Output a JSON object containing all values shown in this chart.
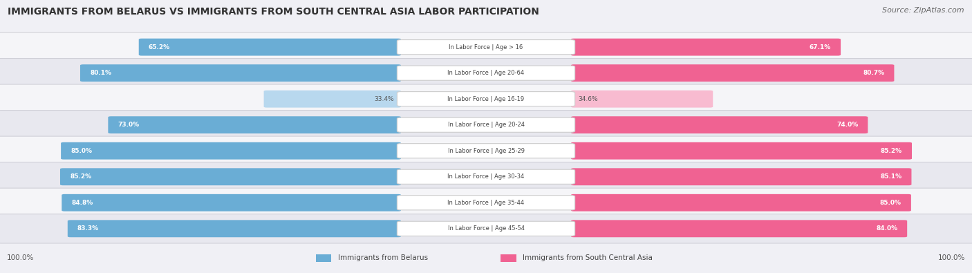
{
  "title": "IMMIGRANTS FROM BELARUS VS IMMIGRANTS FROM SOUTH CENTRAL ASIA LABOR PARTICIPATION",
  "source": "Source: ZipAtlas.com",
  "categories": [
    "In Labor Force | Age > 16",
    "In Labor Force | Age 20-64",
    "In Labor Force | Age 16-19",
    "In Labor Force | Age 20-24",
    "In Labor Force | Age 25-29",
    "In Labor Force | Age 30-34",
    "In Labor Force | Age 35-44",
    "In Labor Force | Age 45-54"
  ],
  "belarus_values": [
    65.2,
    80.1,
    33.4,
    73.0,
    85.0,
    85.2,
    84.8,
    83.3
  ],
  "asia_values": [
    67.1,
    80.7,
    34.6,
    74.0,
    85.2,
    85.1,
    85.0,
    84.0
  ],
  "belarus_color": "#6aadd5",
  "belarus_color_light": "#b8d8ee",
  "asia_color": "#f06292",
  "asia_color_light": "#f8bbd0",
  "label_belarus": "Immigrants from Belarus",
  "label_asia": "Immigrants from South Central Asia",
  "bg_color": "#f0f0f5",
  "row_bg_even": "#f5f5f8",
  "row_bg_odd": "#e8e8ef",
  "max_value": 100.0
}
